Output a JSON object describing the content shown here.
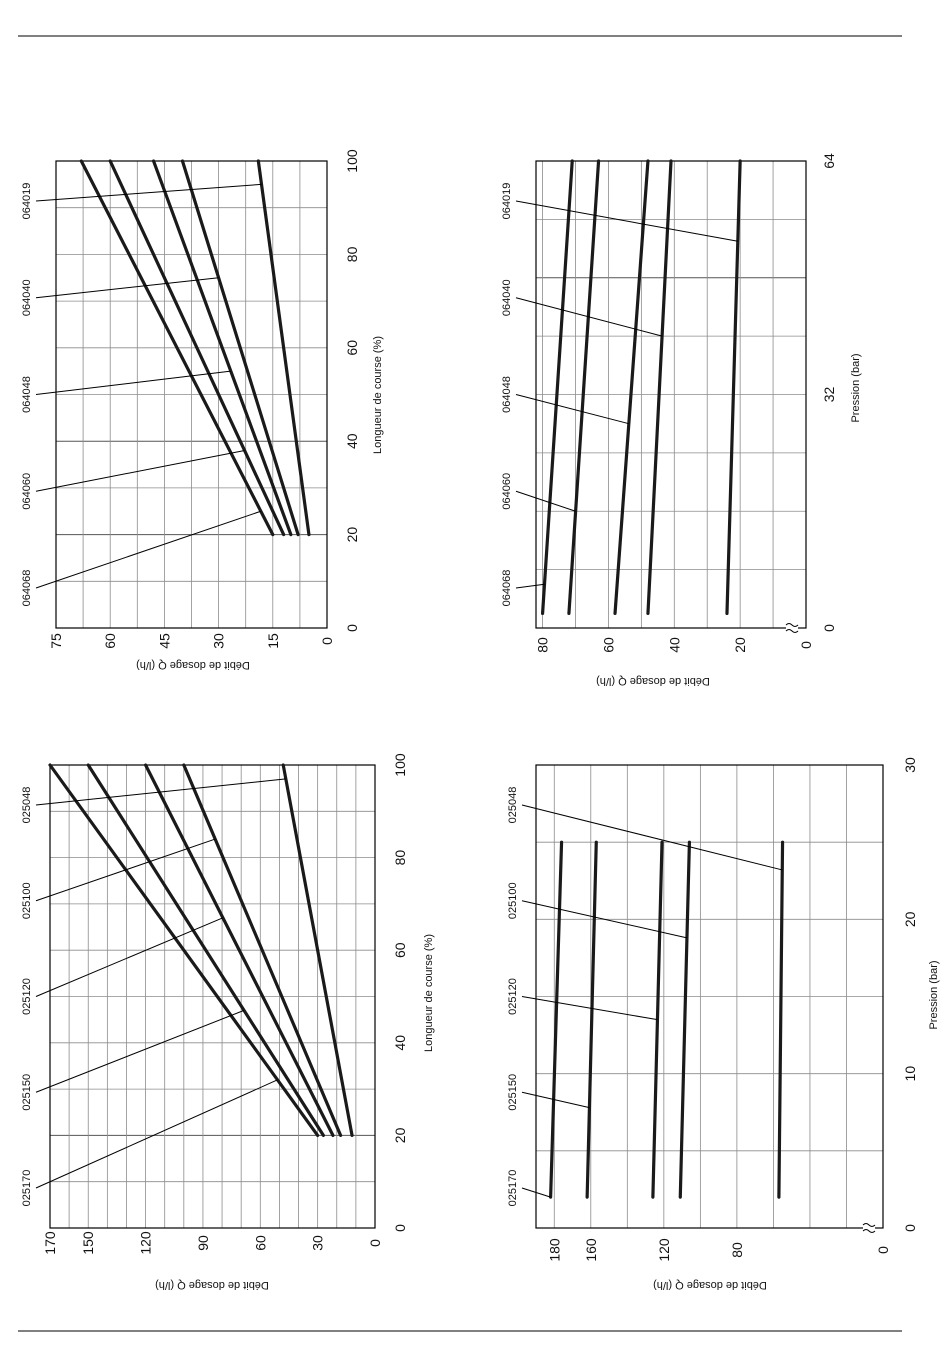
{
  "chart_data": [
    {
      "type": "line",
      "x": [
        20,
        100
      ],
      "xticks": [
        0,
        20,
        40,
        60,
        80,
        100
      ],
      "yticks": [
        0,
        15,
        30,
        45,
        60,
        75
      ],
      "xlabel": "Longueur de course (%)",
      "ylabel": "Débit de dosage Q (l/h)",
      "xlim": [
        0,
        100
      ],
      "ylim": [
        0,
        75
      ],
      "series": [
        {
          "name": "064068",
          "values": [
            15,
            68
          ],
          "leader_x": 25
        },
        {
          "name": "064060",
          "values": [
            12,
            60
          ],
          "leader_x": 38
        },
        {
          "name": "064048",
          "values": [
            10,
            48
          ],
          "leader_x": 55
        },
        {
          "name": "064040",
          "values": [
            8,
            40
          ],
          "leader_x": 75
        },
        {
          "name": "064019",
          "values": [
            5,
            19
          ],
          "leader_x": 95
        }
      ],
      "grid": true
    },
    {
      "type": "line",
      "x": [
        2,
        64
      ],
      "xticks": [
        0,
        32,
        64
      ],
      "yticks": [
        0,
        20,
        40,
        60,
        80
      ],
      "xlabel": "Pression (bar)",
      "ylabel": "Débit de dosage Q (l/h)",
      "xlim": [
        0,
        64
      ],
      "ylim": [
        0,
        82
      ],
      "series": [
        {
          "name": "064068",
          "values": [
            80,
            71
          ],
          "leader_x": 6
        },
        {
          "name": "064060",
          "values": [
            72,
            63
          ],
          "leader_x": 16
        },
        {
          "name": "064048",
          "values": [
            58,
            48
          ],
          "leader_x": 28
        },
        {
          "name": "064040",
          "values": [
            48,
            41
          ],
          "leader_x": 40
        },
        {
          "name": "064019",
          "values": [
            24,
            20
          ],
          "leader_x": 53
        }
      ],
      "grid": true
    },
    {
      "type": "line",
      "x": [
        20,
        100
      ],
      "xticks": [
        0,
        20,
        40,
        60,
        80,
        100
      ],
      "yticks": [
        0,
        30,
        60,
        90,
        120,
        150,
        170
      ],
      "xlabel": "Longueur de course (%)",
      "ylabel": "Débit de dosage Q (l/h)",
      "xlim": [
        0,
        100
      ],
      "ylim": [
        0,
        170
      ],
      "series": [
        {
          "name": "025170",
          "values": [
            30,
            170
          ],
          "leader_x": 32
        },
        {
          "name": "025150",
          "values": [
            27,
            150
          ],
          "leader_x": 47
        },
        {
          "name": "025120",
          "values": [
            22,
            120
          ],
          "leader_x": 67
        },
        {
          "name": "025100",
          "values": [
            18,
            100
          ],
          "leader_x": 84
        },
        {
          "name": "025048",
          "values": [
            12,
            48
          ],
          "leader_x": 97
        }
      ],
      "grid": true
    },
    {
      "type": "line",
      "x": [
        2,
        25
      ],
      "xticks": [
        0,
        10,
        20,
        30
      ],
      "yticks": [
        0,
        80,
        120,
        160,
        180
      ],
      "xlabel": "Pression (bar)",
      "ylabel": "Débit de dosage Q (l/h)",
      "xlim": [
        0,
        30
      ],
      "ylim": [
        0,
        190
      ],
      "series": [
        {
          "name": "025170",
          "values": [
            182,
            176
          ],
          "leader_x": 2
        },
        {
          "name": "025150",
          "values": [
            162,
            157
          ],
          "leader_x": 7.8
        },
        {
          "name": "025120",
          "values": [
            126,
            121
          ],
          "leader_x": 13.5
        },
        {
          "name": "025100",
          "values": [
            111,
            106
          ],
          "leader_x": 18.8
        },
        {
          "name": "025048",
          "values": [
            57,
            55
          ],
          "leader_x": 23.2
        }
      ],
      "grid": true
    }
  ]
}
